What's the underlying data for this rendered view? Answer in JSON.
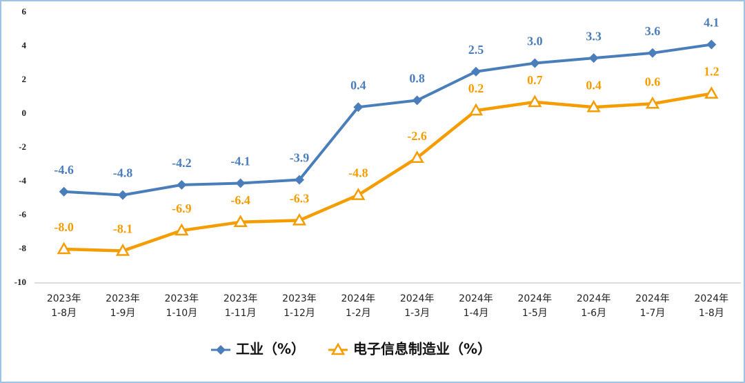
{
  "chart_data": {
    "type": "line",
    "categories": [
      [
        "2023年",
        "1-8月"
      ],
      [
        "2023年",
        "1-9月"
      ],
      [
        "2023年",
        "1-10月"
      ],
      [
        "2023年",
        "1-11月"
      ],
      [
        "2023年",
        "1-12月"
      ],
      [
        "2024年",
        "1-2月"
      ],
      [
        "2024年",
        "1-3月"
      ],
      [
        "2024年",
        "1-4月"
      ],
      [
        "2024年",
        "1-5月"
      ],
      [
        "2024年",
        "1-6月"
      ],
      [
        "2024年",
        "1-7月"
      ],
      [
        "2024年",
        "1-8月"
      ]
    ],
    "series": [
      {
        "name": "工业（%）",
        "color": "#4a7ebb",
        "marker": "diamond",
        "values": [
          -4.6,
          -4.8,
          -4.2,
          -4.1,
          -3.9,
          0.4,
          0.8,
          2.5,
          3.0,
          3.3,
          3.6,
          4.1
        ],
        "value_labels": [
          "-4.6",
          "-4.8",
          "-4.2",
          "-4.1",
          "-3.9",
          "0.4",
          "0.8",
          "2.5",
          "3.0",
          "3.3",
          "3.6",
          "4.1"
        ]
      },
      {
        "name": "电子信息制造业（%）",
        "color": "#f59d00",
        "marker": "triangle",
        "values": [
          -8.0,
          -8.1,
          -6.9,
          -6.4,
          -6.3,
          -4.8,
          -2.6,
          0.2,
          0.7,
          0.4,
          0.6,
          1.2
        ],
        "value_labels": [
          "-8.0",
          "-8.1",
          "-6.9",
          "-6.4",
          "-6.3",
          "-4.8",
          "-2.6",
          "0.2",
          "0.7",
          "0.4",
          "0.6",
          "1.2"
        ]
      }
    ],
    "ylim": [
      -10,
      6
    ],
    "yticks": [
      -10,
      -8,
      -6,
      -4,
      -2,
      0,
      2,
      4,
      6
    ]
  }
}
